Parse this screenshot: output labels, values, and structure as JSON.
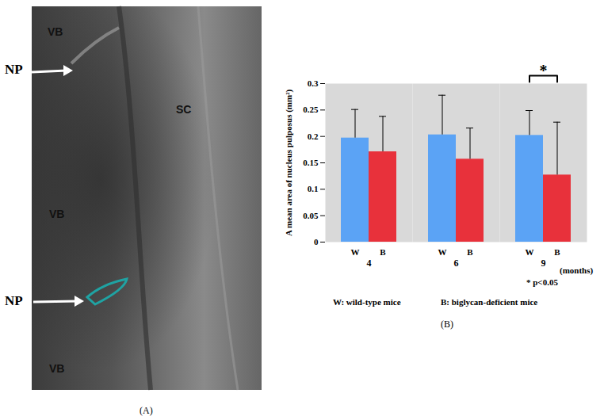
{
  "chart_data": {
    "type": "bar",
    "caption": "(B)",
    "categories": [
      "4",
      "6",
      "9"
    ],
    "xlabel": "(months)",
    "ylabel": "A mean area of nucleus pulposus (mm²)",
    "series": [
      {
        "name": "W",
        "color": "#5ba3f5",
        "values": [
          0.197,
          0.203,
          0.202
        ],
        "errors": [
          0.054,
          0.075,
          0.047
        ]
      },
      {
        "name": "B",
        "color": "#e8313b",
        "values": [
          0.171,
          0.157,
          0.127
        ],
        "errors": [
          0.067,
          0.059,
          0.1
        ]
      }
    ],
    "ylim": [
      0,
      0.3
    ],
    "yticks": [
      0,
      0.05,
      0.1,
      0.15,
      0.2,
      0.25,
      0.3
    ],
    "grid": false,
    "significance": {
      "category": "9",
      "pair": [
        "W",
        "B"
      ],
      "label": "*"
    },
    "annotations": [
      "* p<0.05",
      "W: wild-type mice",
      "B: biglycan-deficient mice"
    ]
  },
  "panel_a": {
    "caption": "(A)",
    "labels": [
      "VB",
      "VB",
      "VB",
      "SC"
    ],
    "arrows": [
      "NP",
      "NP"
    ]
  }
}
